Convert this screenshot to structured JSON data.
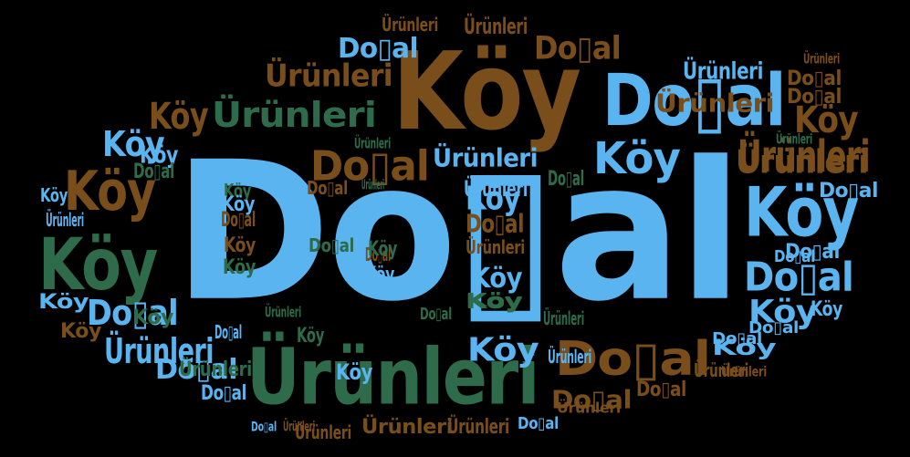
{
  "palette": {
    "blue": "#5ab4f0",
    "brown": "#7a4e1a",
    "green": "#2e6b4a",
    "background": "#000000"
  },
  "words": [
    {
      "text": "Do▯al",
      "color": "blue"
    },
    {
      "text": "Köy",
      "color": "brown"
    },
    {
      "text": "Do▯al",
      "color": "blue"
    },
    {
      "text": "Ürünleri",
      "color": "green"
    },
    {
      "text": "Köy",
      "color": "green"
    },
    {
      "text": "Köy",
      "color": "blue"
    },
    {
      "text": "Köy",
      "color": "brown"
    },
    {
      "text": "Köy",
      "color": "blue"
    },
    {
      "text": "Ürünleri",
      "color": "green"
    },
    {
      "text": "Do▯al",
      "color": "blue"
    },
    {
      "text": "Do▯al",
      "color": "brown"
    },
    {
      "text": "Ürünleri",
      "color": "brown"
    },
    {
      "text": "Do▯al",
      "color": "blue"
    },
    {
      "text": "Do▯al",
      "color": "brown"
    },
    {
      "text": "Köy",
      "color": "blue"
    },
    {
      "text": "Ürünleri",
      "color": "blue"
    },
    {
      "text": "Köy",
      "color": "blue"
    },
    {
      "text": "Ürünleri",
      "color": "brown"
    },
    {
      "text": "Do▯al",
      "color": "brown"
    },
    {
      "text": "Do▯al",
      "color": "blue"
    },
    {
      "text": "Köy",
      "color": "blue"
    },
    {
      "text": "Do▯al",
      "color": "blue"
    },
    {
      "text": "Köy",
      "color": "brown"
    },
    {
      "text": "Ürünleri",
      "color": "blue"
    },
    {
      "text": "Ürünleri",
      "color": "brown"
    },
    {
      "text": "Ürünleri",
      "color": "blue"
    },
    {
      "text": "Köy",
      "color": "blue"
    },
    {
      "text": "Do▯al",
      "color": "brown"
    },
    {
      "text": "Ürünleri",
      "color": "brown"
    },
    {
      "text": "Ürünleri",
      "color": "blue"
    },
    {
      "text": "Ürünleri",
      "color": "brown"
    },
    {
      "text": "Ürünleri",
      "color": "brown"
    },
    {
      "text": "Do▯al",
      "color": "brown"
    },
    {
      "text": "Do▯al",
      "color": "brown"
    },
    {
      "text": "Do▯al",
      "color": "brown"
    },
    {
      "text": "Do▯al",
      "color": "blue"
    },
    {
      "text": "Köy",
      "color": "brown"
    },
    {
      "text": "Ürünleri",
      "color": "brown"
    },
    {
      "text": "Do▯al",
      "color": "brown"
    },
    {
      "text": "Do▯al",
      "color": "blue"
    },
    {
      "text": "Ürünleri",
      "color": "brown"
    },
    {
      "text": "Köy",
      "color": "blue"
    },
    {
      "text": "Köy",
      "color": "green"
    },
    {
      "text": "Köy",
      "color": "blue"
    },
    {
      "text": "Do▯al",
      "color": "blue"
    },
    {
      "text": "Ürünleri",
      "color": "green"
    },
    {
      "text": "Köy",
      "color": "blue"
    },
    {
      "text": "Köy",
      "color": "green"
    },
    {
      "text": "Köy",
      "color": "brown"
    },
    {
      "text": "Do▯al",
      "color": "brown"
    },
    {
      "text": "Köy",
      "color": "green"
    },
    {
      "text": "Köy",
      "color": "blue"
    },
    {
      "text": "Ürünleri",
      "color": "blue"
    },
    {
      "text": "Do▯al",
      "color": "brown"
    },
    {
      "text": "Do▯al",
      "color": "blue"
    },
    {
      "text": "Köy",
      "color": "blue"
    },
    {
      "text": "Do▯al",
      "color": "brown"
    },
    {
      "text": "Köy",
      "color": "green"
    },
    {
      "text": "Do▯al",
      "color": "green"
    },
    {
      "text": "Ürünleri",
      "color": "brown"
    },
    {
      "text": "Köy",
      "color": "blue"
    },
    {
      "text": "Do▯al",
      "color": "blue"
    },
    {
      "text": "Köy",
      "color": "green"
    },
    {
      "text": "Do▯al",
      "color": "green"
    },
    {
      "text": "Köy",
      "color": "brown"
    },
    {
      "text": "Köy",
      "color": "green"
    },
    {
      "text": "Köy",
      "color": "blue"
    },
    {
      "text": "Do▯al",
      "color": "green"
    },
    {
      "text": "Ürünleri",
      "color": "blue"
    },
    {
      "text": "Ürünleri",
      "color": "green"
    },
    {
      "text": "Do▯al",
      "color": "green"
    },
    {
      "text": "Köy",
      "color": "green"
    },
    {
      "text": "Köy",
      "color": "blue"
    },
    {
      "text": "Köy",
      "color": "blue"
    },
    {
      "text": "Do▯al",
      "color": "blue"
    },
    {
      "text": "Ürünleri",
      "color": "brown"
    },
    {
      "text": "Ürünleri",
      "color": "green"
    },
    {
      "text": "Do▯al",
      "color": "blue"
    },
    {
      "text": "Ürünleri",
      "color": "green"
    },
    {
      "text": "Ürünleri",
      "color": "brown"
    },
    {
      "text": "Ürünleri",
      "color": "brown"
    },
    {
      "text": "Ürünleri",
      "color": "green"
    },
    {
      "text": "Do▯al",
      "color": "blue"
    },
    {
      "text": "Do▯al",
      "color": "blue"
    },
    {
      "text": "Ürünleri",
      "color": "brown"
    },
    {
      "text": "Ürünleri",
      "color": "brown"
    },
    {
      "text": "Ürünleri",
      "color": "green"
    },
    {
      "text": "Ürünleri",
      "color": "brown"
    }
  ]
}
